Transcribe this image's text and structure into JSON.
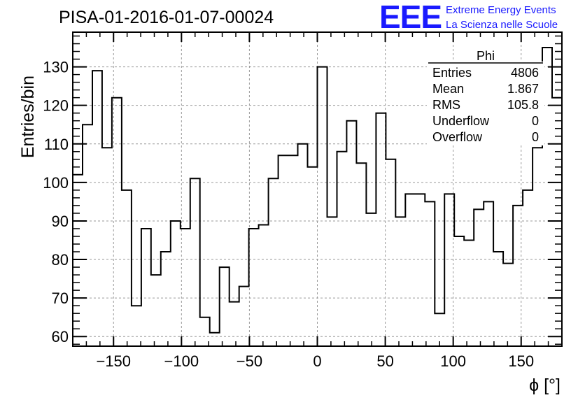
{
  "header": {
    "run_title": "PISA-01-2016-01-07-00024",
    "logo_text": "EEE",
    "logo_line1": "Extreme Energy Events",
    "logo_line2": "La Scienza nelle Scuole",
    "logo_color": "#1a1aff"
  },
  "stats_box": {
    "title": "Phi",
    "rows": [
      {
        "label": "Entries",
        "value": "4806"
      },
      {
        "label": "Mean",
        "value": "1.867"
      },
      {
        "label": "RMS",
        "value": "105.8"
      },
      {
        "label": "Underflow",
        "value": "0"
      },
      {
        "label": "Overflow",
        "value": "0"
      }
    ]
  },
  "chart_data": {
    "type": "histogram",
    "xlabel": "ϕ [°]",
    "ylabel": "Entries/bin",
    "xlim": [
      -180,
      180
    ],
    "ylim": [
      57.5,
      139
    ],
    "x_ticks": [
      -150,
      -100,
      -50,
      0,
      50,
      100,
      150
    ],
    "y_ticks": [
      60,
      70,
      80,
      90,
      100,
      110,
      120,
      130
    ],
    "bin_width": 7.2,
    "bin_start": -180,
    "values": [
      102,
      115,
      129,
      109,
      122,
      98,
      68,
      88,
      76,
      82,
      90,
      88,
      101,
      65,
      61,
      78,
      69,
      73,
      88,
      89,
      101,
      107,
      107,
      110,
      104,
      130,
      91,
      108,
      116,
      105,
      92,
      118,
      106,
      91,
      97,
      97,
      95,
      66,
      97,
      86,
      85,
      93,
      95,
      82,
      79,
      94,
      98,
      109,
      135,
      122
    ],
    "grid": true,
    "line_color": "#000000",
    "grid_color": "#9a9a9a"
  }
}
